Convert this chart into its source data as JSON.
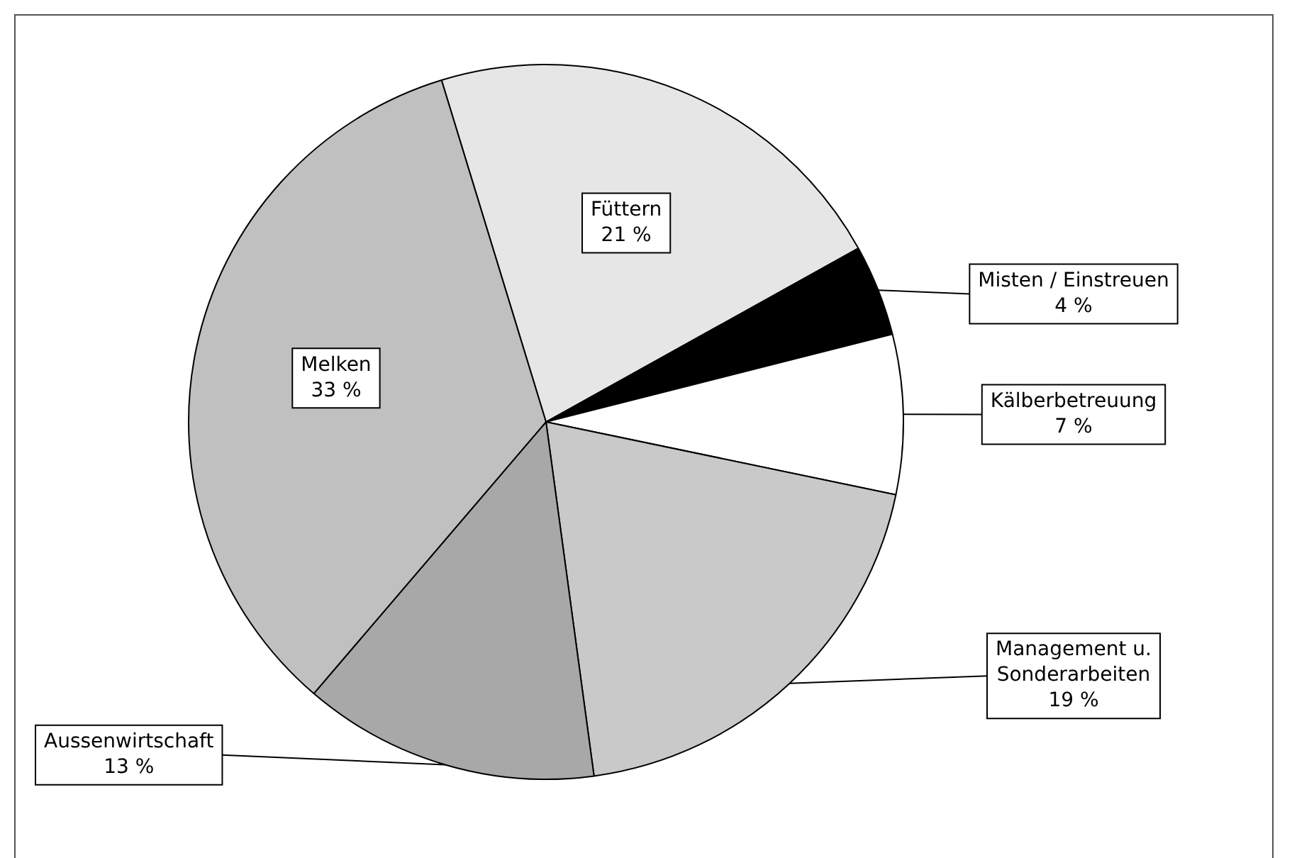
{
  "chart_data": {
    "type": "pie",
    "categories": [
      "Füttern",
      "Misten / Einstreuen",
      "Kälberbetreuung",
      "Management u. Sonderarbeiten",
      "Aussenwirtschaft",
      "Melken"
    ],
    "values": [
      21,
      4,
      7,
      19,
      13,
      33
    ],
    "value_labels": [
      "21 %",
      "4 %",
      "7 %",
      "19 %",
      "13 %",
      "33 %"
    ],
    "colors": [
      "#e6e6e6",
      "#000000",
      "#ffffff",
      "#c9c9c9",
      "#a8a8a8",
      "#c0c0c0"
    ],
    "legend": false
  }
}
